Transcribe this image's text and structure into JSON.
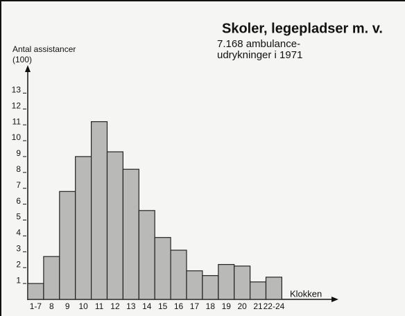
{
  "chart_data": {
    "type": "bar",
    "title": "Skoler, legepladser m. v.",
    "subtitle": [
      "7.168 ambulance-",
      "udrykninger i 1971"
    ],
    "y_label": [
      "Antal assistancer",
      "(100)"
    ],
    "x_label": "Klokken",
    "categories": [
      "1-7",
      "8",
      "9",
      "10",
      "11",
      "12",
      "13",
      "14",
      "15",
      "16",
      "17",
      "18",
      "19",
      "20",
      "21",
      "22-24"
    ],
    "values": [
      1.0,
      2.7,
      6.8,
      9.0,
      11.2,
      9.3,
      8.2,
      5.6,
      3.9,
      3.1,
      1.8,
      1.5,
      2.2,
      2.1,
      1.1,
      1.4
    ],
    "color": "#b9b9b7",
    "ylim": [
      0,
      14.5
    ],
    "yticks": [
      1,
      2,
      3,
      4,
      5,
      6,
      7,
      8,
      9,
      10,
      11,
      12,
      13
    ],
    "grid": false
  }
}
